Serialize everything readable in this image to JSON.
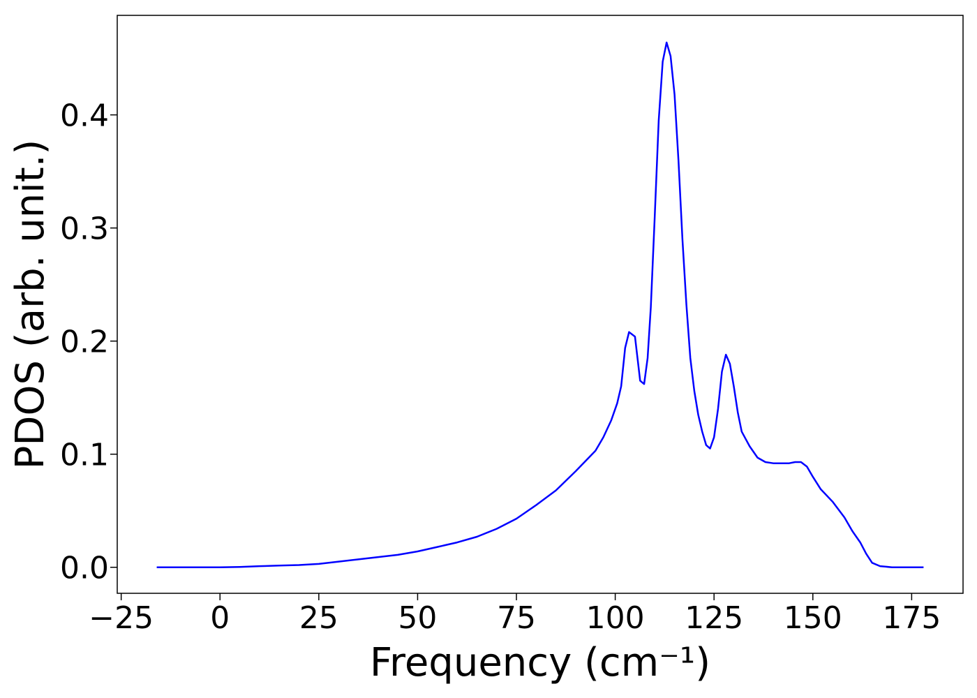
{
  "chart_data": {
    "type": "line",
    "title": "",
    "xlabel": "Frequency (cm⁻¹)",
    "ylabel": "PDOS (arb. unit.)",
    "xlim": [
      -26,
      188
    ],
    "ylim": [
      -0.023,
      0.488
    ],
    "grid": false,
    "legend": "none",
    "x_ticks": [
      {
        "value": -25,
        "label": "−25"
      },
      {
        "value": 0,
        "label": "0"
      },
      {
        "value": 25,
        "label": "25"
      },
      {
        "value": 50,
        "label": "50"
      },
      {
        "value": 75,
        "label": "75"
      },
      {
        "value": 100,
        "label": "100"
      },
      {
        "value": 125,
        "label": "125"
      },
      {
        "value": 150,
        "label": "150"
      },
      {
        "value": 175,
        "label": "175"
      }
    ],
    "y_ticks": [
      {
        "value": 0.0,
        "label": "0.0"
      },
      {
        "value": 0.1,
        "label": "0.1"
      },
      {
        "value": 0.2,
        "label": "0.2"
      },
      {
        "value": 0.3,
        "label": "0.3"
      },
      {
        "value": 0.4,
        "label": "0.4"
      }
    ],
    "series": [
      {
        "color": "#0000ff",
        "x": [
          -16,
          -5,
          0,
          5,
          10,
          15,
          20,
          25,
          30,
          35,
          40,
          45,
          50,
          55,
          60,
          65,
          70,
          75,
          80,
          85,
          90,
          95,
          97,
          99,
          100.5,
          101.5,
          102.5,
          103.5,
          105,
          106.3,
          107.3,
          108.2,
          109,
          110,
          111,
          112,
          113,
          114,
          115,
          116,
          117,
          118,
          119,
          120,
          121,
          122,
          123,
          124,
          125,
          126,
          127,
          128,
          129,
          130,
          131,
          132,
          134,
          136,
          138,
          140,
          142,
          144,
          145.5,
          147,
          148.5,
          150,
          152,
          155,
          158,
          160,
          162,
          163.5,
          165,
          167,
          170,
          175,
          178
        ],
        "y": [
          0.0,
          0.0,
          0.0,
          0.0003,
          0.001,
          0.0015,
          0.002,
          0.003,
          0.005,
          0.007,
          0.009,
          0.011,
          0.014,
          0.018,
          0.022,
          0.027,
          0.034,
          0.043,
          0.055,
          0.068,
          0.085,
          0.103,
          0.115,
          0.13,
          0.145,
          0.16,
          0.194,
          0.208,
          0.204,
          0.165,
          0.162,
          0.185,
          0.23,
          0.31,
          0.395,
          0.447,
          0.464,
          0.452,
          0.418,
          0.36,
          0.29,
          0.232,
          0.185,
          0.156,
          0.135,
          0.12,
          0.108,
          0.105,
          0.115,
          0.14,
          0.173,
          0.188,
          0.18,
          0.16,
          0.137,
          0.12,
          0.107,
          0.097,
          0.093,
          0.092,
          0.092,
          0.092,
          0.093,
          0.093,
          0.089,
          0.08,
          0.069,
          0.058,
          0.044,
          0.032,
          0.022,
          0.012,
          0.004,
          0.001,
          0.0,
          0.0,
          0.0
        ]
      }
    ]
  }
}
